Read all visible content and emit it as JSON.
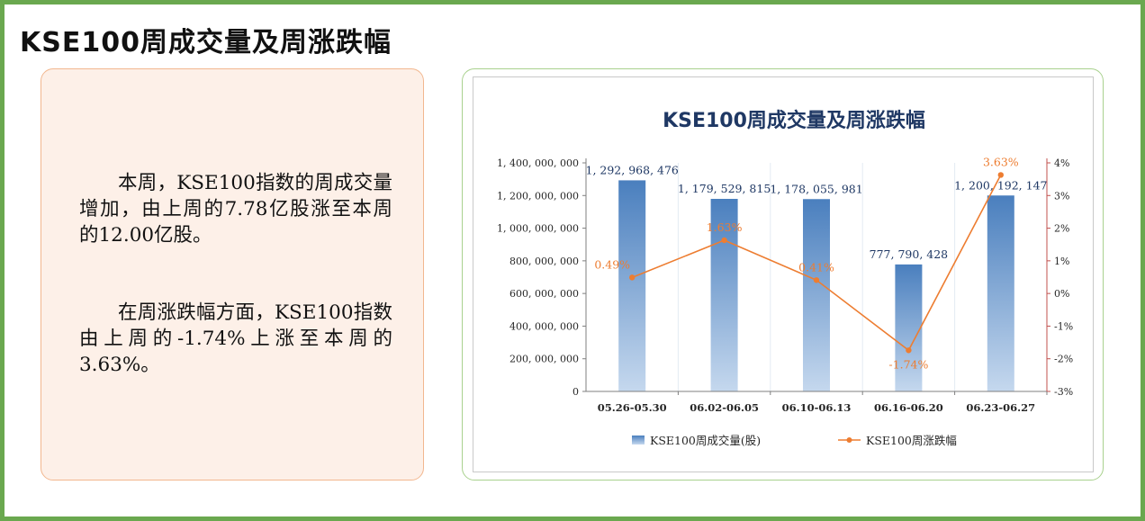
{
  "page": {
    "title": "KSE100周成交量及周涨跌幅"
  },
  "summary": {
    "paragraph1": "本周，KSE100指数的周成交量增加，由上周的7.78亿股涨至本周的12.00亿股。",
    "paragraph2": "在周涨跌幅方面，KSE100指数由上周的-1.74%上涨至本周的3.63%。"
  },
  "colors": {
    "frame": "#6aa84f",
    "text_panel_border": "#f2b78f",
    "text_panel_bg": "#fdf0e8",
    "chart_panel_border": "#a9d18e",
    "bar_top": "#4a7fbe",
    "bar_bottom": "#c5d8ee",
    "line": "#ed7d31",
    "line_label": "#ed7d31",
    "bar_label": "#1f3864",
    "title": "#1f3864",
    "right_axis": "#c0504d"
  },
  "chart_data": {
    "type": "bar",
    "title": "KSE100周成交量及周涨跌幅",
    "categories": [
      "05.26-05.30",
      "06.02-06.05",
      "06.10-06.13",
      "06.16-06.20",
      "06.23-06.27"
    ],
    "series": [
      {
        "name": "KSE100周成交量(股)",
        "type": "bar",
        "axis": "left",
        "values": [
          1292968476,
          1179529815,
          1178055981,
          777790428,
          1200192147
        ],
        "labels": [
          "1, 292, 968, 476",
          "1, 179, 529, 815",
          "1, 178, 055, 981",
          "777, 790, 428",
          "1, 200, 192, 147"
        ]
      },
      {
        "name": "KSE100周涨跌幅",
        "type": "line",
        "axis": "right",
        "values": [
          0.49,
          1.63,
          0.41,
          -1.74,
          3.63
        ],
        "labels": [
          "0.49%",
          "1.63%",
          "0.41%",
          "-1.74%",
          "3.63%"
        ]
      }
    ],
    "left_axis": {
      "ylim": [
        0,
        1400000000
      ],
      "ticks": [
        "0",
        "200, 000, 000",
        "400, 000, 000",
        "600, 000, 000",
        "800, 000, 000",
        "1, 000, 000, 000",
        "1, 200, 000, 000",
        "1, 400, 000, 000"
      ]
    },
    "right_axis": {
      "ylim": [
        -3,
        4
      ],
      "ticks": [
        "-3%",
        "-2%",
        "-1%",
        "0%",
        "1%",
        "2%",
        "3%",
        "4%"
      ]
    },
    "legend_placement": "bottom",
    "grid": "vertical-category-separators"
  }
}
